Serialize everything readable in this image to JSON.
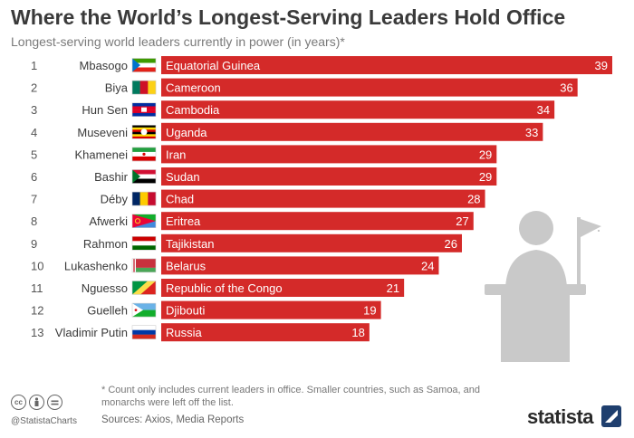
{
  "header": {
    "title": "Where the World’s Longest-Serving Leaders Hold Office",
    "subtitle": "Longest-serving world leaders currently in power (in years)*"
  },
  "chart_data": {
    "type": "bar",
    "orientation": "horizontal",
    "title": "Where the World’s Longest-Serving Leaders Hold Office",
    "subtitle": "Longest-serving world leaders currently in power (in years)*",
    "xlabel": "",
    "ylabel": "",
    "xlim": [
      0,
      39
    ],
    "grid": false,
    "legend": "none",
    "bar_color": "#d42a29",
    "rows": [
      {
        "rank": "1",
        "leader": "Mbasogo",
        "country": "Equatorial Guinea",
        "value": 39,
        "flag": "equatorial-guinea-flag-icon"
      },
      {
        "rank": "2",
        "leader": "Biya",
        "country": "Cameroon",
        "value": 36,
        "flag": "cameroon-flag-icon"
      },
      {
        "rank": "3",
        "leader": "Hun Sen",
        "country": "Cambodia",
        "value": 34,
        "flag": "cambodia-flag-icon"
      },
      {
        "rank": "4",
        "leader": "Museveni",
        "country": "Uganda",
        "value": 33,
        "flag": "uganda-flag-icon"
      },
      {
        "rank": "5",
        "leader": "Khamenei",
        "country": "Iran",
        "value": 29,
        "flag": "iran-flag-icon"
      },
      {
        "rank": "6",
        "leader": "Bashir",
        "country": "Sudan",
        "value": 29,
        "flag": "sudan-flag-icon"
      },
      {
        "rank": "7",
        "leader": "Déby",
        "country": "Chad",
        "value": 28,
        "flag": "chad-flag-icon"
      },
      {
        "rank": "8",
        "leader": "Afwerki",
        "country": "Eritrea",
        "value": 27,
        "flag": "eritrea-flag-icon"
      },
      {
        "rank": "9",
        "leader": "Rahmon",
        "country": "Tajikistan",
        "value": 26,
        "flag": "tajikistan-flag-icon"
      },
      {
        "rank": "10",
        "leader": "Lukashenko",
        "country": "Belarus",
        "value": 24,
        "flag": "belarus-flag-icon"
      },
      {
        "rank": "11",
        "leader": "Nguesso",
        "country": "Republic of the Congo",
        "value": 21,
        "flag": "congo-flag-icon"
      },
      {
        "rank": "12",
        "leader": "Guelleh",
        "country": "Djibouti",
        "value": 19,
        "flag": "djibouti-flag-icon"
      },
      {
        "rank": "13",
        "leader": "Vladimir Putin",
        "country": "Russia",
        "value": 18,
        "flag": "russia-flag-icon"
      }
    ],
    "decoration_icon": "speaker-at-podium-icon"
  },
  "footer": {
    "footnote": "* Count only includes current leaders in office. Smaller countries, such as Samoa, and monarchs were left off the list.",
    "sources": "Sources: Axios, Media Reports",
    "handle": "@StatistaCharts",
    "license_icons": [
      "cc-icon",
      "attribution-icon",
      "no-derivatives-icon"
    ],
    "brand": "statista"
  }
}
